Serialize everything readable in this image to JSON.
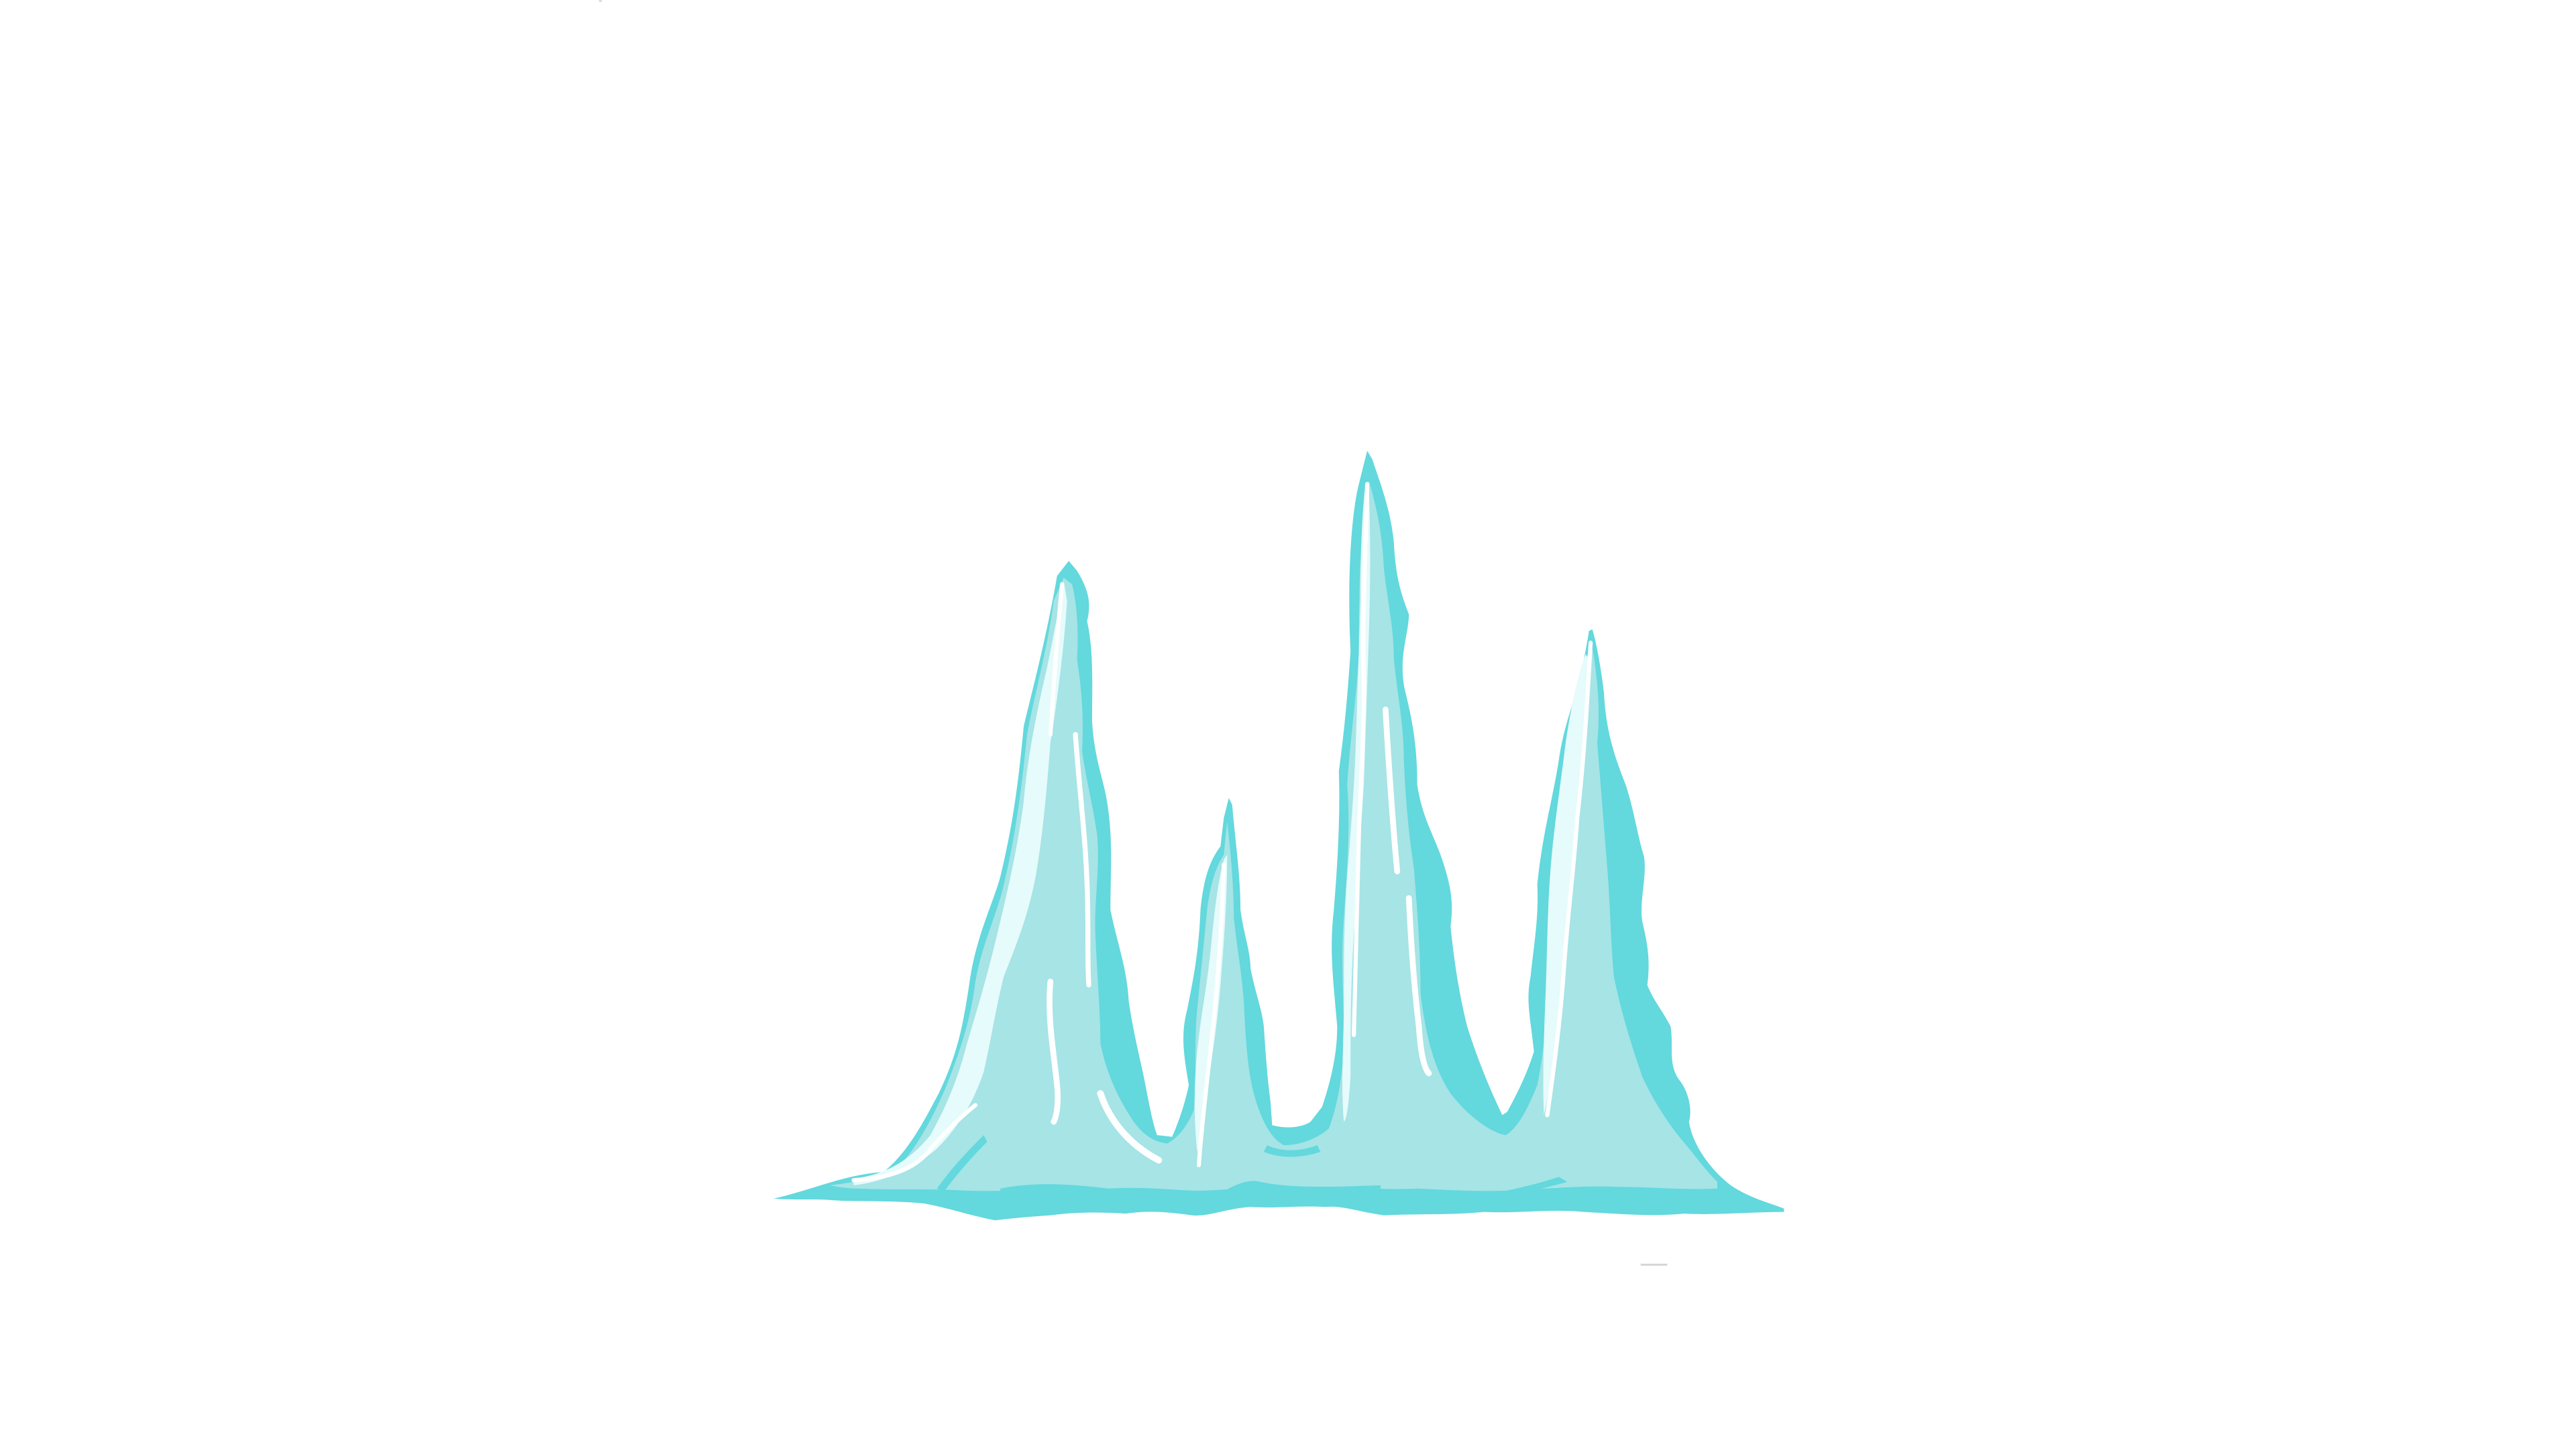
{
  "canvas": {
    "background": "#ffffff"
  },
  "illustration": {
    "subject": "ice-crystal-spires",
    "colors": {
      "outline": "#63d8dd",
      "fill": "#a6e4e6",
      "highlight": "#e6fbfb",
      "shine": "#ffffff"
    }
  }
}
